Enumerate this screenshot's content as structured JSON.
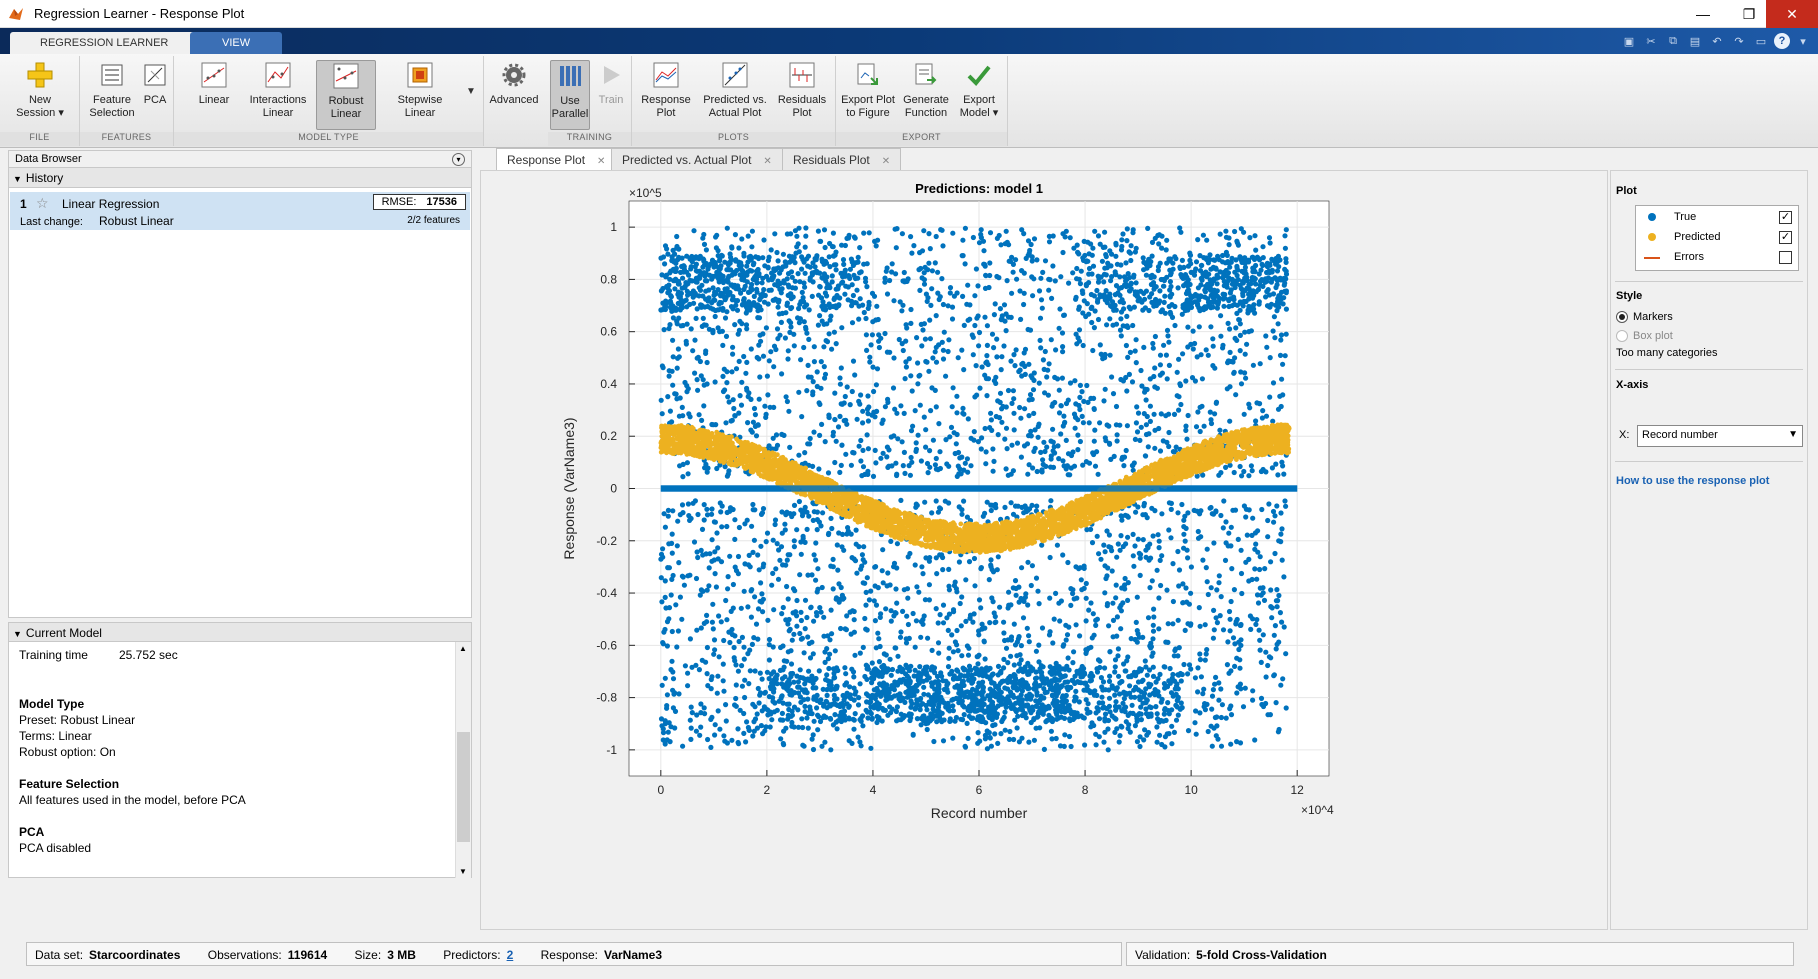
{
  "window": {
    "title": "Regression Learner - Response Plot",
    "min": "—",
    "max": "❐",
    "close": "✕"
  },
  "tabs": {
    "active": "REGRESSION LEARNER",
    "inactive": "VIEW"
  },
  "ribbon": {
    "groups": {
      "file": "FILE",
      "features": "FEATURES",
      "model_type": "MODEL TYPE",
      "training": "TRAINING",
      "plots": "PLOTS",
      "export": "EXPORT"
    },
    "buttons": {
      "new_session": [
        "New",
        "Session ▾"
      ],
      "feature_selection": [
        "Feature",
        "Selection"
      ],
      "pca": [
        "PCA",
        ""
      ],
      "linear": [
        "Linear",
        ""
      ],
      "interactions_linear": [
        "Interactions",
        "Linear"
      ],
      "robust_linear": [
        "Robust",
        "Linear"
      ],
      "stepwise_linear": [
        "Stepwise",
        "Linear"
      ],
      "advanced": [
        "Advanced",
        ""
      ],
      "use_parallel": [
        "Use",
        "Parallel"
      ],
      "train": [
        "Train",
        ""
      ],
      "response_plot": [
        "Response",
        "Plot"
      ],
      "predicted_actual": [
        "Predicted vs.",
        "Actual Plot"
      ],
      "residuals_plot": [
        "Residuals",
        "Plot"
      ],
      "export_plot": [
        "Export Plot",
        "to Figure"
      ],
      "generate_function": [
        "Generate",
        "Function"
      ],
      "export_model": [
        "Export",
        "Model ▾"
      ]
    }
  },
  "data_browser": {
    "title": "Data Browser",
    "history_header": "History",
    "item": {
      "num": "1",
      "name": "Linear Regression",
      "rmse_label": "RMSE:",
      "rmse_value": "17536",
      "last_change_label": "Last change:",
      "last_change": "Robust Linear",
      "features": "2/2 features"
    },
    "current_model_header": "Current Model",
    "current_model": {
      "training_time_label": "Training time",
      "training_time": "25.752 sec",
      "model_type_h": "Model Type",
      "preset": "Preset: Robust Linear",
      "terms": "Terms: Linear",
      "robust": "Robust option: On",
      "feature_sel_h": "Feature Selection",
      "feature_sel": "All features used in the model, before PCA",
      "pca_h": "PCA",
      "pca": "PCA disabled"
    }
  },
  "doc_tabs": [
    "Response Plot",
    "Predicted vs. Actual Plot",
    "Residuals Plot"
  ],
  "right_panel": {
    "plot_h": "Plot",
    "legend": {
      "true": "True",
      "predicted": "Predicted",
      "errors": "Errors"
    },
    "style_h": "Style",
    "markers": "Markers",
    "boxplot": "Box plot",
    "too_many": "Too many categories",
    "xaxis_h": "X-axis",
    "x_label": "X:",
    "x_value": "Record number",
    "help_link": "How to use the response plot"
  },
  "status": {
    "dataset_label": "Data set:",
    "dataset": "Starcoordinates",
    "obs_label": "Observations:",
    "obs": "119614",
    "size_label": "Size:",
    "size": "3 MB",
    "pred_label": "Predictors:",
    "pred": "2",
    "resp_label": "Response:",
    "resp": "VarName3",
    "valid_label": "Validation:",
    "valid": "5-fold Cross-Validation"
  },
  "colors": {
    "true": "#0072bd",
    "predicted": "#edb120",
    "errors": "#d95319",
    "ribbon_dark": "#0b2a5a"
  },
  "chart_data": {
    "type": "scatter",
    "title": "Predictions: model 1",
    "xlabel": "Record number",
    "ylabel": "Response (VarName3)",
    "x_exponent": "×10^4",
    "y_exponent": "×10^5",
    "xlim": [
      -0.6,
      12.6
    ],
    "ylim": [
      -1.1,
      1.1
    ],
    "xticks": [
      "0",
      "2",
      "4",
      "6",
      "8",
      "10",
      "12"
    ],
    "yticks": [
      "-1",
      "-0.8",
      "-0.6",
      "-0.4",
      "-0.2",
      "0",
      "0.2",
      "0.4",
      "0.6",
      "0.8",
      "1"
    ],
    "series": [
      {
        "name": "True",
        "description": "Dense scatter of true responses filling [-1, 1]×1e5 across records 0–11.8×1e4, clustered near 0.85 at both ends and near -0.85 around 6×1e4; flat band at 0 from 0 to 12×1e4"
      },
      {
        "name": "Predicted",
        "description": "Band following a cosine curve: ≈0.2 at x=0, crossing 0 near x≈3, minimum ≈-0.2 near x≈6, 0 near x≈9, ≈0.2 at x≈11.8; band thickness ≈0.1"
      }
    ],
    "grid": true,
    "legend": "right-panel"
  }
}
